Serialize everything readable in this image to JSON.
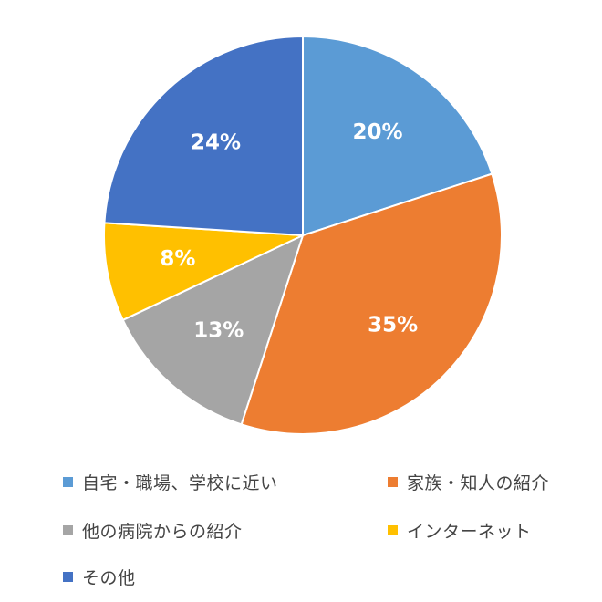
{
  "chart_data": {
    "type": "pie",
    "title": "",
    "categories": [
      "自宅・職場、学校に近い",
      "家族・知人の紹介",
      "他の病院からの紹介",
      "インターネット",
      "その他"
    ],
    "values": [
      20,
      35,
      13,
      8,
      24
    ],
    "data_labels": [
      "20%",
      "35%",
      "13%",
      "8%",
      "24%"
    ],
    "colors": [
      "#5B9BD5",
      "#ED7D31",
      "#A5A5A5",
      "#FFC000",
      "#4472C4"
    ],
    "legend_position": "bottom"
  }
}
